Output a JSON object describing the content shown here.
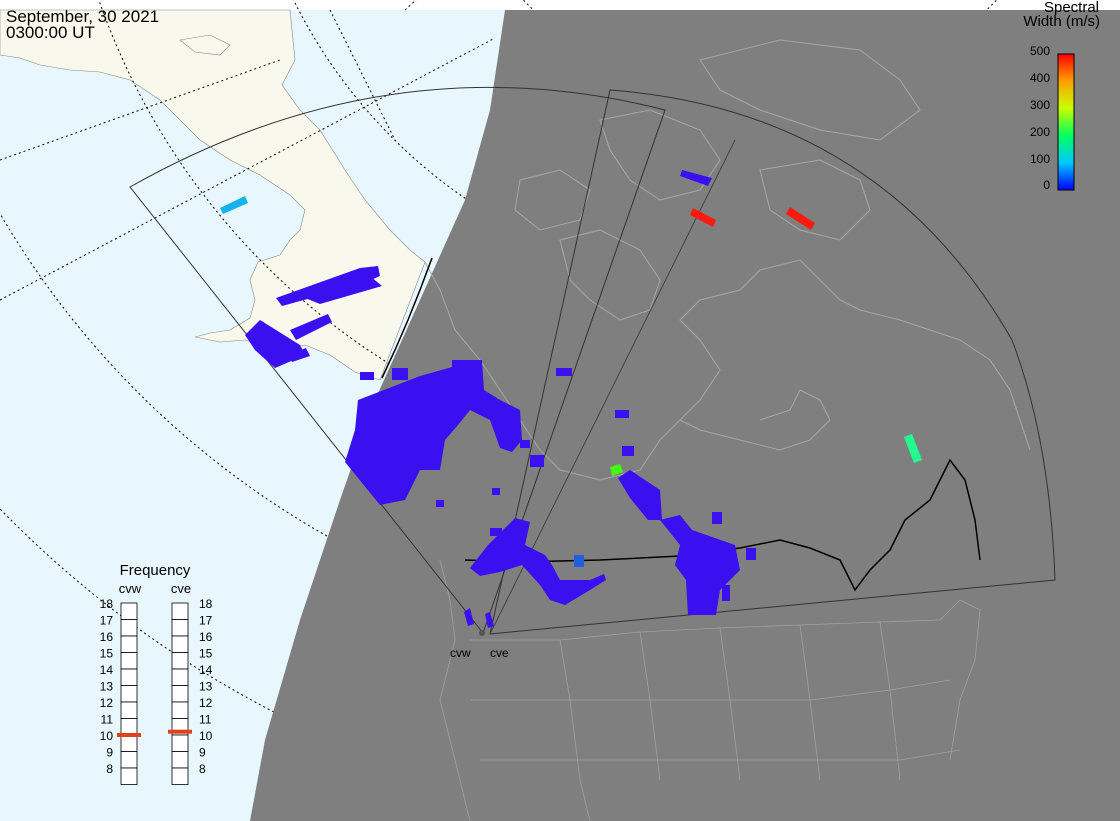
{
  "header": {
    "date": "September, 30 2021",
    "time": "0300:00 UT"
  },
  "colorbar": {
    "title_line1": "Spectral",
    "title_line2": "Width (m/s)",
    "ticks": [
      "500",
      "400",
      "300",
      "200",
      "100",
      "0"
    ],
    "min": 0,
    "max": 500
  },
  "frequency": {
    "title": "Frequency",
    "radars": [
      {
        "name": "cvw",
        "value_mhz": 10.5
      },
      {
        "name": "cve",
        "value_mhz": 10.7
      }
    ],
    "ticks": [
      "18",
      "17",
      "16",
      "15",
      "14",
      "13",
      "12",
      "11",
      "10",
      "9",
      "8"
    ],
    "marker_color": "#e0401a"
  },
  "stations": [
    {
      "name": "cvw"
    },
    {
      "name": "cve"
    }
  ],
  "colors": {
    "ocean": "#e8f6fd",
    "land_day": "#f8f8ec",
    "night": "#7f7f7f",
    "echo_low": "#3a10f0"
  }
}
